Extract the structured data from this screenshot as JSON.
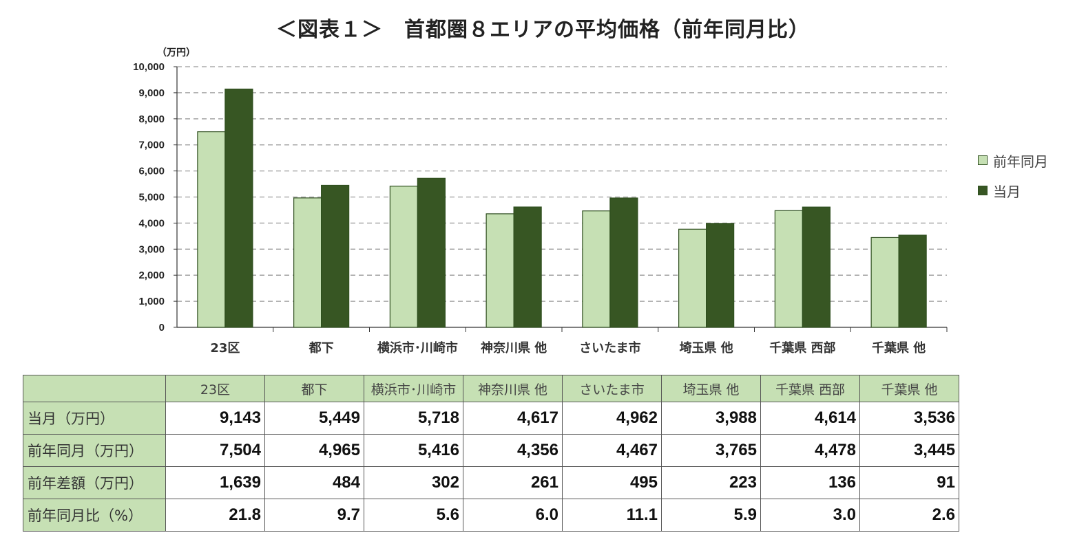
{
  "title": "＜図表１＞　首都圏８エリアの平均価格（前年同月比）",
  "chart_data": {
    "type": "bar",
    "title": "＜図表１＞　首都圏８エリアの平均価格（前年同月比）",
    "unit_label": "（万円）",
    "categories": [
      "23区",
      "都下",
      "横浜市･川崎市",
      "神奈川県 他",
      "さいたま市",
      "埼玉県 他",
      "千葉県 西部",
      "千葉県 他"
    ],
    "series": [
      {
        "name": "前年同月",
        "color": "#c6e0b4",
        "values": [
          7504,
          4965,
          5416,
          4356,
          4467,
          3765,
          4478,
          3445
        ]
      },
      {
        "name": "当月",
        "color": "#375623",
        "values": [
          9143,
          5449,
          5718,
          4617,
          4962,
          3988,
          4614,
          3536
        ]
      }
    ],
    "ylim": [
      0,
      10000
    ],
    "yticks": [
      0,
      1000,
      2000,
      3000,
      4000,
      5000,
      6000,
      7000,
      8000,
      9000,
      10000
    ],
    "ytick_labels": [
      "0",
      "1,000",
      "2,000",
      "3,000",
      "4,000",
      "5,000",
      "6,000",
      "7,000",
      "8,000",
      "9,000",
      "10,000"
    ],
    "grid": true,
    "legend_position": "right"
  },
  "table": {
    "headers": [
      "23区",
      "都下",
      "横浜市･川崎市",
      "神奈川県 他",
      "さいたま市",
      "埼玉県 他",
      "千葉県 西部",
      "千葉県 他"
    ],
    "rows": [
      {
        "label": "当月（万円）",
        "values": [
          "9,143",
          "5,449",
          "5,718",
          "4,617",
          "4,962",
          "3,988",
          "4,614",
          "3,536"
        ]
      },
      {
        "label": "前年同月（万円）",
        "values": [
          "7,504",
          "4,965",
          "5,416",
          "4,356",
          "4,467",
          "3,765",
          "4,478",
          "3,445"
        ]
      },
      {
        "label": "前年差額（万円）",
        "values": [
          "1,639",
          "484",
          "302",
          "261",
          "495",
          "223",
          "136",
          "91"
        ]
      },
      {
        "label": "前年同月比（%）",
        "values": [
          "21.8",
          "9.7",
          "5.6",
          "6.0",
          "11.1",
          "5.9",
          "3.0",
          "2.6"
        ]
      }
    ]
  }
}
